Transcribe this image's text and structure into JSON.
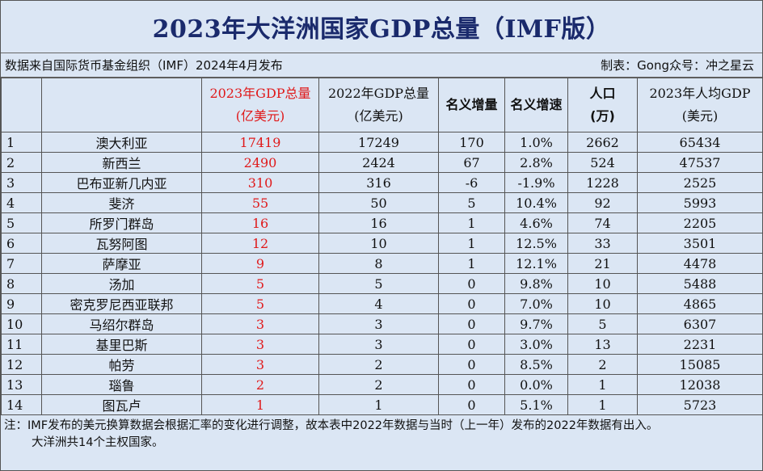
{
  "title": "2023年大洋洲国家GDP总量（IMF版）",
  "source_text": "数据来自国际货币基金组织（IMF）2024年4月发布",
  "maker_text": "制表：Gong众号：冲之星云",
  "colors": {
    "background": "#dbe6f4",
    "title": "#1a2a6c",
    "highlight": "#e0191a"
  },
  "headers": {
    "gdp2023": [
      "2023年GDP总量",
      "(亿美元)"
    ],
    "gdp2022": [
      "2022年GDP总量",
      "(亿美元)"
    ],
    "nominal_increase": "名义增量",
    "nominal_growth": "名义增速",
    "population": [
      "人口",
      "(万)"
    ],
    "per_capita": [
      "2023年人均GDP",
      "(美元)"
    ]
  },
  "chart_data": {
    "type": "table",
    "title": "2023年大洋洲国家GDP总量（IMF版）",
    "columns": [
      "",
      "",
      "2023年GDP总量(亿美元)",
      "2022年GDP总量(亿美元)",
      "名义增量",
      "名义增速",
      "人口(万)",
      "2023年人均GDP(美元)"
    ],
    "rows": [
      {
        "rank": "1",
        "country": "澳大利亚",
        "gdp2023": "17419",
        "gdp2022": "17249",
        "inc": "170",
        "growth": "1.0%",
        "pop": "2662",
        "pc": "65434"
      },
      {
        "rank": "2",
        "country": "新西兰",
        "gdp2023": "2490",
        "gdp2022": "2424",
        "inc": "67",
        "growth": "2.8%",
        "pop": "524",
        "pc": "47537"
      },
      {
        "rank": "3",
        "country": "巴布亚新几内亚",
        "gdp2023": "310",
        "gdp2022": "316",
        "inc": "-6",
        "growth": "-1.9%",
        "pop": "1228",
        "pc": "2525"
      },
      {
        "rank": "4",
        "country": "斐济",
        "gdp2023": "55",
        "gdp2022": "50",
        "inc": "5",
        "growth": "10.4%",
        "pop": "92",
        "pc": "5993"
      },
      {
        "rank": "5",
        "country": "所罗门群岛",
        "gdp2023": "16",
        "gdp2022": "16",
        "inc": "1",
        "growth": "4.6%",
        "pop": "74",
        "pc": "2205"
      },
      {
        "rank": "6",
        "country": "瓦努阿图",
        "gdp2023": "12",
        "gdp2022": "10",
        "inc": "1",
        "growth": "12.5%",
        "pop": "33",
        "pc": "3501"
      },
      {
        "rank": "7",
        "country": "萨摩亚",
        "gdp2023": "9",
        "gdp2022": "8",
        "inc": "1",
        "growth": "12.1%",
        "pop": "21",
        "pc": "4478"
      },
      {
        "rank": "8",
        "country": "汤加",
        "gdp2023": "5",
        "gdp2022": "5",
        "inc": "0",
        "growth": "9.8%",
        "pop": "10",
        "pc": "5488"
      },
      {
        "rank": "9",
        "country": "密克罗尼西亚联邦",
        "gdp2023": "5",
        "gdp2022": "4",
        "inc": "0",
        "growth": "7.0%",
        "pop": "10",
        "pc": "4865"
      },
      {
        "rank": "10",
        "country": "马绍尔群岛",
        "gdp2023": "3",
        "gdp2022": "3",
        "inc": "0",
        "growth": "9.7%",
        "pop": "5",
        "pc": "6307"
      },
      {
        "rank": "11",
        "country": "基里巴斯",
        "gdp2023": "3",
        "gdp2022": "3",
        "inc": "0",
        "growth": "3.0%",
        "pop": "13",
        "pc": "2231"
      },
      {
        "rank": "12",
        "country": "帕劳",
        "gdp2023": "3",
        "gdp2022": "2",
        "inc": "0",
        "growth": "8.5%",
        "pop": "2",
        "pc": "15085"
      },
      {
        "rank": "13",
        "country": "瑙鲁",
        "gdp2023": "2",
        "gdp2022": "2",
        "inc": "0",
        "growth": "0.0%",
        "pop": "1",
        "pc": "12038"
      },
      {
        "rank": "14",
        "country": "图瓦卢",
        "gdp2023": "1",
        "gdp2022": "1",
        "inc": "0",
        "growth": "5.1%",
        "pop": "1",
        "pc": "5723"
      }
    ]
  },
  "notes": [
    "注：IMF发布的美元换算数据会根据汇率的变化进行调整，故本表中2022年数据与当时（上一年）发布的2022年数据有出入。",
    "大洋洲共14个主权国家。"
  ]
}
